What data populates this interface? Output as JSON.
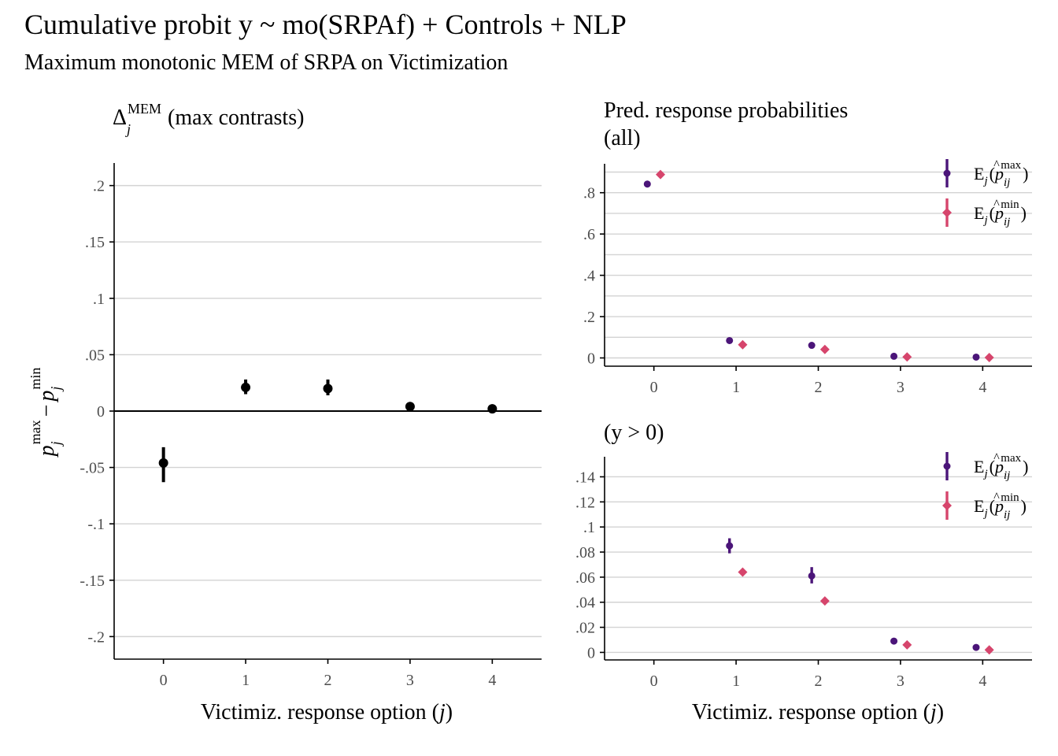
{
  "header": {
    "title": "Cumulative probit y ~ mo(SRPAf) + Controls + NLP",
    "subtitle": "Maximum monotonic MEM of SRPA on Victimization"
  },
  "colors": {
    "max": "#4b1579",
    "min": "#d6456c",
    "contrast": "#000000",
    "grid": "#d3d3d3"
  },
  "chart_data": [
    {
      "id": "left",
      "type": "scatter",
      "title": "Δj^MEM (max contrasts)",
      "title_parts": {
        "delta": "Δ",
        "sub": "j",
        "sup": "MEM",
        "rest": "(max contrasts)"
      },
      "xlabel": "Victimiz. response option (j)",
      "xlabel_parts": {
        "text": "Victimiz. response option (",
        "var": "j",
        "close": ")"
      },
      "ylabel": "p_j^max − p_j^min",
      "ylabel_parts": {
        "p": "p",
        "sub": "j",
        "sup_max": "max",
        "minus": "−",
        "sup_min": "min"
      },
      "x_ticks": [
        "0",
        "1",
        "2",
        "3",
        "4"
      ],
      "y_ticks": [
        {
          "value": 0.2,
          "label": ".2"
        },
        {
          "value": 0.15,
          "label": ".15"
        },
        {
          "value": 0.1,
          "label": ".1"
        },
        {
          "value": 0.05,
          "label": ".05"
        },
        {
          "value": 0,
          "label": "0"
        },
        {
          "value": -0.05,
          "label": "-.05"
        },
        {
          "value": -0.1,
          "label": "-.1"
        },
        {
          "value": -0.15,
          "label": "-.15"
        },
        {
          "value": -0.2,
          "label": "-.2"
        }
      ],
      "xlim": [
        -0.6,
        4.6
      ],
      "ylim": [
        -0.22,
        0.22
      ],
      "zero_line": true,
      "series": [
        {
          "key": "contrast",
          "x": [
            0,
            1,
            2,
            3,
            4
          ],
          "values": [
            -0.046,
            0.021,
            0.02,
            0.004,
            0.002
          ],
          "lower": [
            -0.063,
            0.015,
            0.014,
            0.002,
            0.001
          ],
          "upper": [
            -0.032,
            0.028,
            0.028,
            0.006,
            0.003
          ]
        }
      ]
    },
    {
      "id": "top-right",
      "type": "scatter",
      "title": "Pred. response probabilities\n(all)",
      "title_lines": [
        "Pred. response probabilities",
        "(all)"
      ],
      "x_ticks": [
        "0",
        "1",
        "2",
        "3",
        "4"
      ],
      "y_ticks": [
        {
          "value": 0.8,
          "label": ".8"
        },
        {
          "value": 0.6,
          "label": ".6"
        },
        {
          "value": 0.4,
          "label": ".4"
        },
        {
          "value": 0.2,
          "label": ".2"
        },
        {
          "value": 0,
          "label": "0"
        }
      ],
      "minor_gridlines": [
        0.1,
        0.3,
        0.5,
        0.7,
        0.9
      ],
      "xlim": [
        -0.6,
        4.6
      ],
      "ylim": [
        -0.04,
        0.94
      ],
      "legend": {
        "position": "top-right"
      },
      "series": [
        {
          "key": "max",
          "x": [
            0,
            1,
            2,
            3,
            4
          ],
          "values": [
            0.842,
            0.084,
            0.061,
            0.008,
            0.004
          ],
          "lower": [
            0.836,
            0.079,
            0.056,
            0.006,
            0.003
          ],
          "upper": [
            0.848,
            0.09,
            0.067,
            0.01,
            0.005
          ]
        },
        {
          "key": "min",
          "x": [
            0,
            1,
            2,
            3,
            4
          ],
          "values": [
            0.888,
            0.064,
            0.041,
            0.005,
            0.002
          ],
          "lower": [
            0.885,
            0.062,
            0.039,
            0.004,
            0.001
          ],
          "upper": [
            0.891,
            0.066,
            0.043,
            0.006,
            0.003
          ]
        }
      ],
      "legend_entries": [
        {
          "key": "max",
          "E": "E",
          "sub": "j",
          "p": "p",
          "hat": "^",
          "psub": "ij",
          "sup": "max"
        },
        {
          "key": "min",
          "E": "E",
          "sub": "j",
          "p": "p",
          "hat": "^",
          "psub": "ij",
          "sup": "min"
        }
      ]
    },
    {
      "id": "bottom-right",
      "type": "scatter",
      "title": "(y > 0)",
      "xlabel": "Victimiz. response option (j)",
      "xlabel_parts": {
        "text": "Victimiz. response option (",
        "var": "j",
        "close": ")"
      },
      "x_ticks": [
        "0",
        "1",
        "2",
        "3",
        "4"
      ],
      "y_ticks": [
        {
          "value": 0.14,
          "label": ".14"
        },
        {
          "value": 0.12,
          "label": ".12"
        },
        {
          "value": 0.1,
          "label": ".1"
        },
        {
          "value": 0.08,
          "label": ".08"
        },
        {
          "value": 0.06,
          "label": ".06"
        },
        {
          "value": 0.04,
          "label": ".04"
        },
        {
          "value": 0.02,
          "label": ".02"
        },
        {
          "value": 0,
          "label": "0"
        }
      ],
      "xlim": [
        -0.6,
        4.6
      ],
      "ylim": [
        -0.006,
        0.156
      ],
      "legend": {
        "position": "top-right"
      },
      "series": [
        {
          "key": "max",
          "x": [
            1,
            2,
            3,
            4
          ],
          "values": [
            0.085,
            0.061,
            0.009,
            0.004
          ],
          "lower": [
            0.079,
            0.055,
            0.008,
            0.003
          ],
          "upper": [
            0.091,
            0.068,
            0.01,
            0.005
          ]
        },
        {
          "key": "min",
          "x": [
            1,
            2,
            3,
            4
          ],
          "values": [
            0.064,
            0.041,
            0.006,
            0.002
          ],
          "lower": [
            0.062,
            0.039,
            0.005,
            0.001
          ],
          "upper": [
            0.066,
            0.043,
            0.007,
            0.003
          ]
        }
      ],
      "legend_entries": [
        {
          "key": "max",
          "E": "E",
          "sub": "j",
          "p": "p",
          "hat": "^",
          "psub": "ij",
          "sup": "max"
        },
        {
          "key": "min",
          "E": "E",
          "sub": "j",
          "p": "p",
          "hat": "^",
          "psub": "ij",
          "sup": "min"
        }
      ]
    }
  ]
}
